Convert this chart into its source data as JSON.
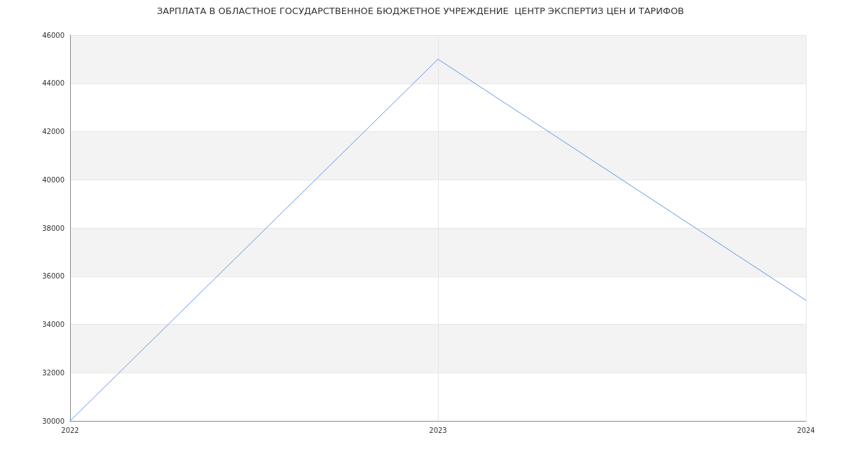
{
  "chart_data": {
    "type": "line",
    "title": "ЗАРПЛАТА В ОБЛАСТНОЕ ГОСУДАРСТВЕННОЕ БЮДЖЕТНОЕ УЧРЕЖДЕНИЕ  ЦЕНТР ЭКСПЕРТИЗ ЦЕН И ТАРИФОВ",
    "categories": [
      "2022",
      "2023",
      "2024"
    ],
    "series": [
      {
        "color": "#6495ed",
        "values": [
          30000,
          45000,
          35000
        ]
      }
    ],
    "ylim": [
      30000,
      46000
    ],
    "yticks": [
      30000,
      32000,
      34000,
      36000,
      38000,
      40000,
      42000,
      44000,
      46000
    ],
    "grid": true,
    "marker": "none",
    "line_style": "solid"
  }
}
